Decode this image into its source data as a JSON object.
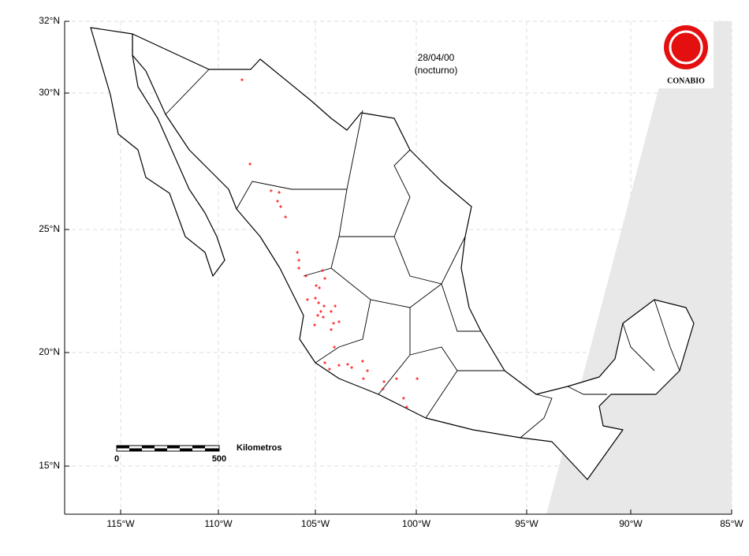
{
  "map": {
    "date": "28/04/00",
    "period": "(nocturno)",
    "logo": "CONABIO",
    "scale_bar": {
      "label": "Kilometros",
      "ticks": [
        0,
        500
      ]
    },
    "xticks": [
      {
        "value": -115,
        "label": "115°W"
      },
      {
        "value": -110,
        "label": "110°W"
      },
      {
        "value": -105,
        "label": "105°W"
      },
      {
        "value": -100,
        "label": "100°W"
      },
      {
        "value": -95,
        "label": "95°W"
      },
      {
        "value": -90,
        "label": "90°W"
      },
      {
        "value": -85,
        "label": "85°W"
      }
    ],
    "yticks": [
      {
        "value": 15,
        "label": "15°N"
      },
      {
        "value": 20,
        "label": "20°N"
      },
      {
        "value": 25,
        "label": "25°N"
      },
      {
        "value": 30,
        "label": "30°N"
      },
      {
        "value": 32,
        "label": "32°N"
      }
    ],
    "grid": true,
    "hotspots": {
      "color": "#ff0000",
      "lon": [
        -108.78,
        -108.37,
        -107.28,
        -106.87,
        -106.95,
        -106.79,
        -106.54,
        -105.93,
        -105.85,
        -105.85,
        -105.49,
        -104.65,
        -104.53,
        -104.96,
        -104.8,
        -105.41,
        -105.0,
        -104.84,
        -104.57,
        -104.73,
        -104.88,
        -104.61,
        -104.22,
        -104.1,
        -103.83,
        -105.04,
        -104.22,
        -104.06,
        -104.53,
        -104.3,
        -103.83,
        -103.4,
        -103.2,
        -102.66,
        -102.42,
        -102.62,
        -101.6,
        -101.64,
        -100.98,
        -100.63,
        -100.47,
        -99.96,
        -104.02
      ],
      "lat": [
        30.37,
        27.4,
        26.42,
        26.36,
        26.04,
        25.84,
        25.46,
        24.07,
        23.75,
        23.43,
        23.11,
        23.33,
        23.01,
        22.72,
        22.63,
        22.15,
        22.21,
        22.02,
        21.89,
        21.67,
        21.51,
        21.44,
        21.67,
        21.19,
        21.25,
        21.12,
        20.93,
        20.22,
        19.55,
        19.27,
        19.44,
        19.48,
        19.34,
        19.62,
        19.2,
        18.85,
        18.72,
        18.4,
        18.85,
        17.99,
        17.6,
        18.85,
        21.89
      ]
    }
  }
}
